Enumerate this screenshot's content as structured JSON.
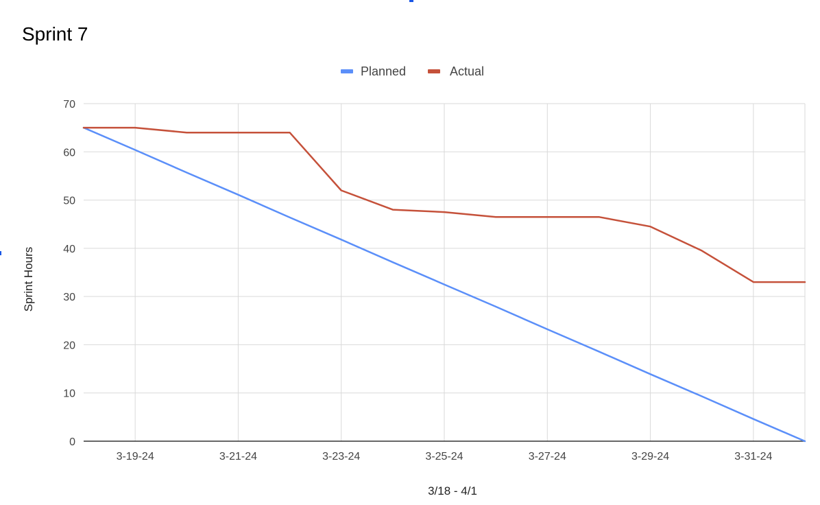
{
  "chart_data": {
    "type": "line",
    "title": "Sprint 7",
    "xlabel": "3/18 - 4/1",
    "ylabel": "Sprint Hours",
    "x": [
      "3-18-24",
      "3-19-24",
      "3-20-24",
      "3-21-24",
      "3-22-24",
      "3-23-24",
      "3-24-24",
      "3-25-24",
      "3-26-24",
      "3-27-24",
      "3-28-24",
      "3-29-24",
      "3-30-24",
      "3-31-24",
      "4-1-24"
    ],
    "x_tick_labels": [
      "3-19-24",
      "3-21-24",
      "3-23-24",
      "3-25-24",
      "3-27-24",
      "3-29-24",
      "3-31-24"
    ],
    "ylim": [
      0,
      70
    ],
    "y_ticks": [
      0,
      10,
      20,
      30,
      40,
      50,
      60,
      70
    ],
    "grid": true,
    "legend_position": "top-center",
    "series": [
      {
        "name": "Planned",
        "color": "#5b8ff9",
        "values": [
          65,
          60.4,
          55.7,
          51.1,
          46.4,
          41.8,
          37.1,
          32.5,
          27.9,
          23.2,
          18.6,
          13.9,
          9.3,
          4.6,
          0
        ]
      },
      {
        "name": "Actual",
        "color": "#c5513a",
        "values": [
          65,
          65,
          64,
          64,
          64,
          52,
          48,
          47.5,
          46.5,
          46.5,
          46.5,
          44.5,
          39.5,
          33,
          33
        ]
      }
    ]
  },
  "colors": {
    "grid": "#d9d9d9",
    "axis": "#333333"
  }
}
